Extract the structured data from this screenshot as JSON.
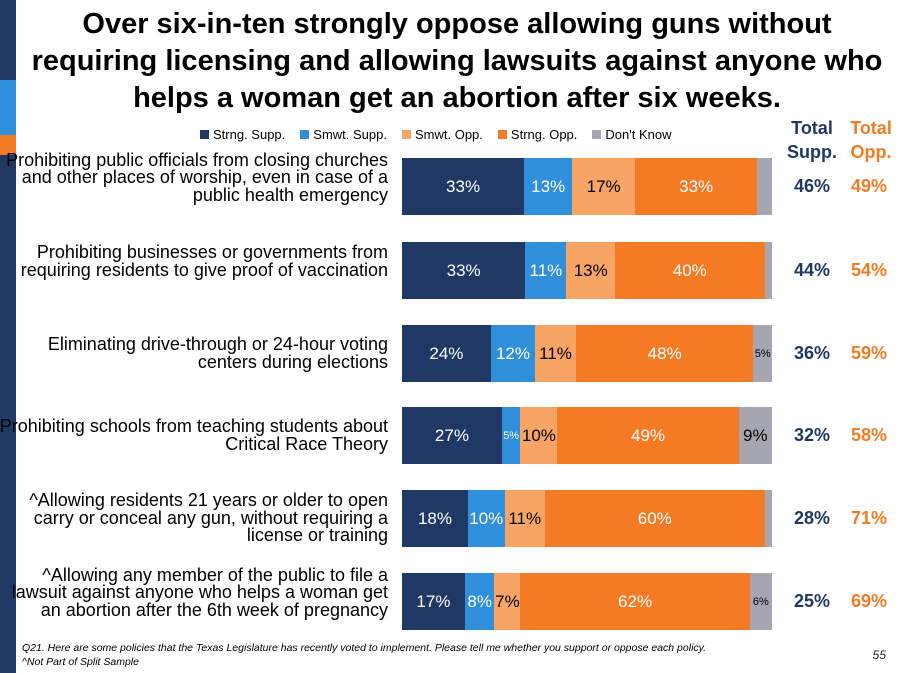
{
  "title": "Over six-in-ten strongly oppose allowing guns without requiring licensing and allowing lawsuits against anyone who helps a woman get an abortion after six weeks.",
  "legend": [
    "Strng. Supp.",
    "Smwt. Supp.",
    "Smwt. Opp.",
    "Strng. Opp.",
    "Don't Know"
  ],
  "colors": {
    "strng_supp": "#1f3864",
    "smwt_supp": "#2f8fdb",
    "smwt_opp": "#f7a465",
    "strng_opp": "#f47b24",
    "dont_know": "#a6a6b0",
    "total_supp_text": "#1f3864",
    "total_opp_text": "#f47b24",
    "side_top": "#1f3864",
    "side_mid": "#2f8fdb",
    "side_accent": "#f47b24"
  },
  "totals_header": {
    "supp": "Total Supp.",
    "opp": "Total Opp."
  },
  "chart_data": {
    "type": "bar",
    "orientation": "horizontal",
    "stacked": true,
    "categories": [
      "Prohibiting public officials from closing churches and other places of worship, even in case of a public health emergency",
      "Prohibiting businesses or governments from requiring residents to give proof of vaccination",
      "Eliminating drive-through or 24-hour voting centers during elections",
      "Prohibiting schools from teaching students about Critical Race Theory",
      "^Allowing residents 21 years or older to open carry or conceal any gun, without requiring a license or training",
      "^Allowing any member of the public to file a lawsuit against anyone who helps a woman get an abortion after the 6th week of pregnancy"
    ],
    "series": [
      {
        "name": "Strng. Supp.",
        "values": [
          33,
          33,
          24,
          27,
          18,
          17
        ]
      },
      {
        "name": "Smwt. Supp.",
        "values": [
          13,
          11,
          12,
          5,
          10,
          8
        ]
      },
      {
        "name": "Smwt. Opp.",
        "values": [
          17,
          13,
          11,
          10,
          11,
          7
        ]
      },
      {
        "name": "Strng. Opp.",
        "values": [
          33,
          40,
          48,
          49,
          60,
          62
        ]
      },
      {
        "name": "Don't Know",
        "values": [
          4,
          2,
          5,
          9,
          2,
          6
        ]
      }
    ],
    "data_labels": [
      [
        "33%",
        "13%",
        "17%",
        "33%",
        ""
      ],
      [
        "33%",
        "11%",
        "13%",
        "40%",
        ""
      ],
      [
        "24%",
        "12%",
        "11%",
        "48%",
        "5%"
      ],
      [
        "27%",
        "5%",
        "10%",
        "49%",
        "9%"
      ],
      [
        "18%",
        "10%",
        "11%",
        "60%",
        ""
      ],
      [
        "17%",
        "8%",
        "7%",
        "62%",
        "6%"
      ]
    ],
    "total_supp": [
      "46%",
      "44%",
      "36%",
      "32%",
      "28%",
      "25%"
    ],
    "total_opp": [
      "49%",
      "54%",
      "59%",
      "58%",
      "71%",
      "69%"
    ],
    "xlim": [
      0,
      100
    ],
    "legend_position": "top"
  },
  "footnotes": [
    "Q21. Here are some policies that the Texas Legislature has recently voted to implement. Please tell me whether you support or oppose each policy.",
    "^Not Part of Split Sample"
  ],
  "page_number": "55"
}
